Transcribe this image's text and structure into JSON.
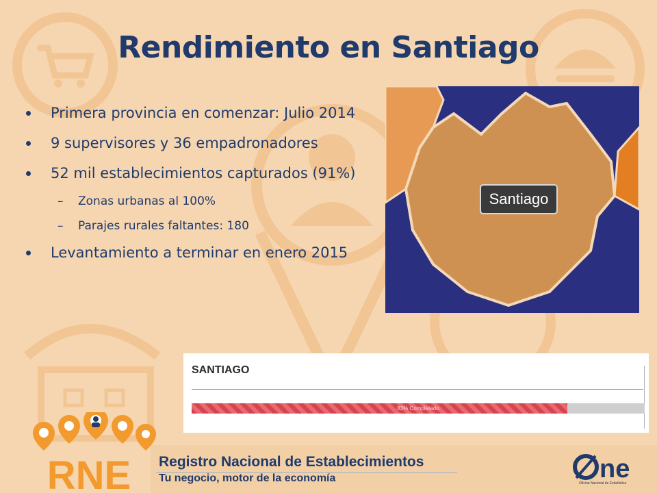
{
  "slide": {
    "title": "Rendimiento en Santiago",
    "bullets": [
      {
        "level": 1,
        "text": "Primera provincia en comenzar: Julio 2014"
      },
      {
        "level": 1,
        "text": "9 supervisores y 36 empadronadores"
      },
      {
        "level": 1,
        "text": "52 mil establecimientos capturados (91%)"
      },
      {
        "level": 2,
        "text": "Zonas urbanas al 100%"
      },
      {
        "level": 2,
        "text": "Parajes rurales faltantes: 180"
      },
      {
        "level": 1,
        "text": "Levantamiento a terminar en enero 2015"
      }
    ]
  },
  "map": {
    "label": "Santiago",
    "colors": {
      "province": "#cf9152",
      "neighbor": "#2b2f7f",
      "other": "#e69a54",
      "east": "#e37f22"
    }
  },
  "progress": {
    "title": "SANTIAGO",
    "percent": 83,
    "text": "83% Completado",
    "fill_color": "#d9434e",
    "track_color": "#cfcfcf"
  },
  "footer": {
    "title": "Registro Nacional de Establecimientos",
    "subtitle": "Tu negocio, motor de la economía",
    "rne_logo": "RNE",
    "one_logo": "ne",
    "one_subtitle": "Oficina Nacional de Estadística"
  },
  "colors": {
    "background": "#f6d6b1",
    "title": "#1f3a6b",
    "logo_orange": "#f29a2e"
  }
}
